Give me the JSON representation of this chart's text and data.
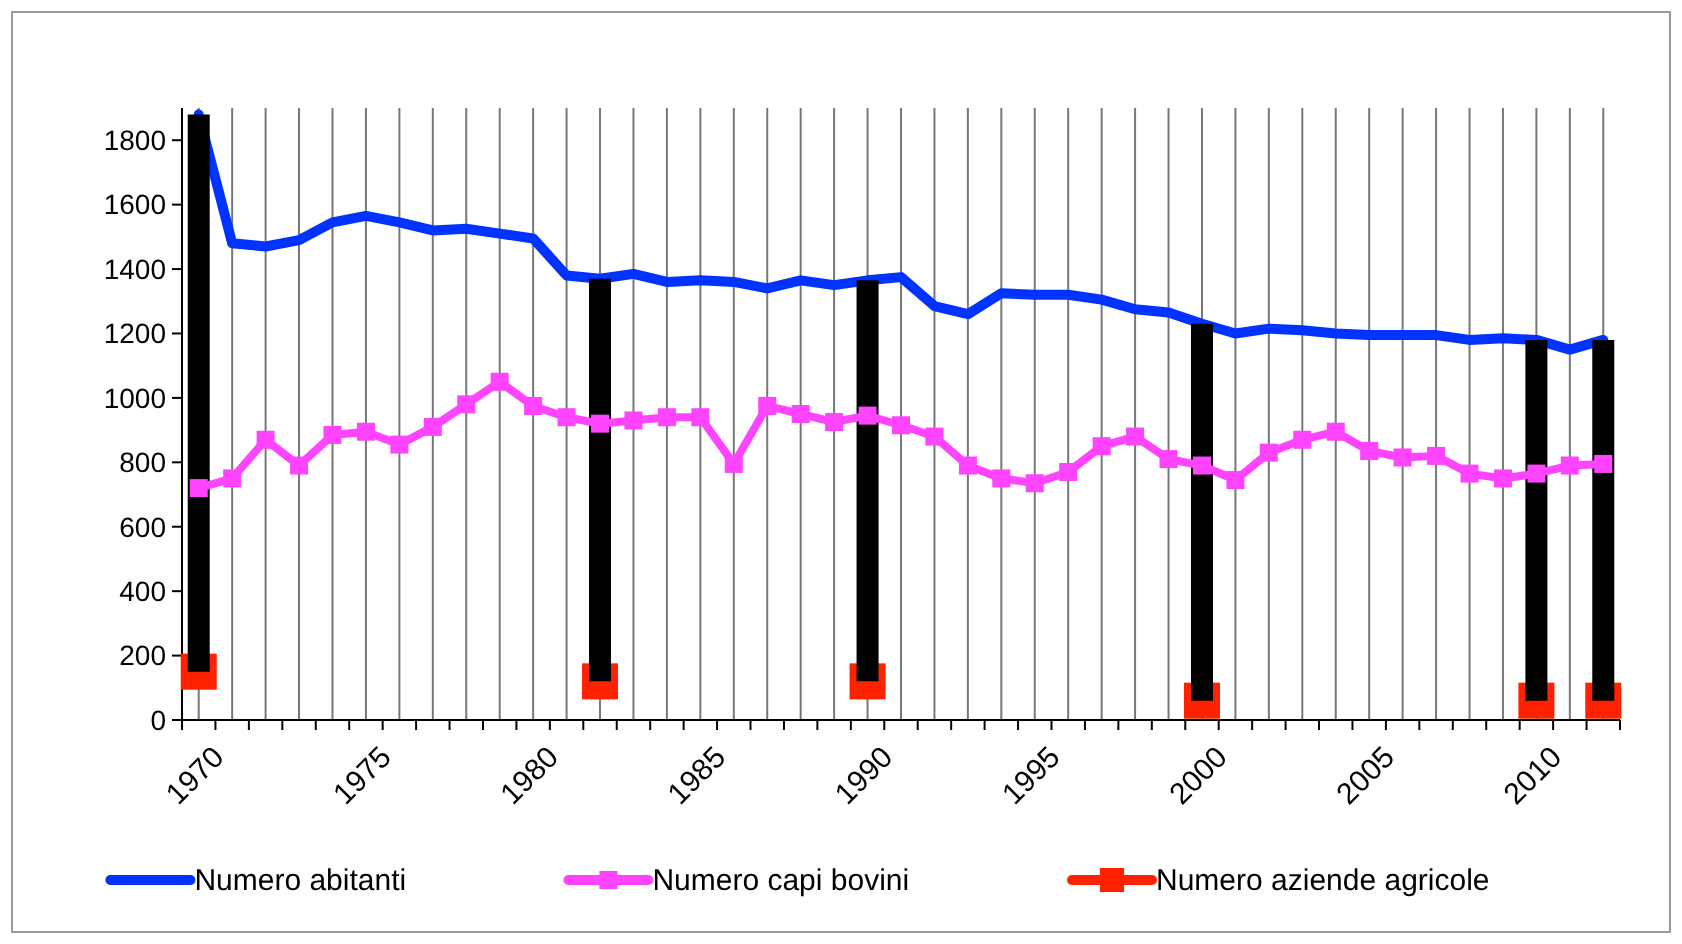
{
  "chart_data": {
    "type": "line",
    "categories": [
      "1970",
      null,
      null,
      null,
      null,
      "1975",
      null,
      null,
      null,
      null,
      "1980",
      null,
      null,
      null,
      null,
      "1985",
      null,
      null,
      null,
      null,
      "1990",
      null,
      null,
      null,
      null,
      "1995",
      null,
      null,
      null,
      null,
      "2000",
      null,
      null,
      null,
      null,
      "2005",
      null,
      null,
      null,
      null,
      "2010",
      null,
      null
    ],
    "series": [
      {
        "name": "Numero abitanti",
        "color": "#0033ff",
        "marker": "none",
        "values": [
          1880,
          1480,
          1470,
          1490,
          1545,
          1565,
          1545,
          1520,
          1525,
          1510,
          1495,
          1380,
          1370,
          1385,
          1360,
          1365,
          1360,
          1340,
          1365,
          1350,
          1365,
          1375,
          1285,
          1260,
          1325,
          1320,
          1320,
          1305,
          1275,
          1265,
          1230,
          1200,
          1215,
          1210,
          1200,
          1195,
          1195,
          1195,
          1180,
          1185,
          1180,
          1150,
          1180
        ]
      },
      {
        "name": "Numero capi bovini",
        "color": "#ff44ff",
        "marker": "square",
        "values": [
          720,
          750,
          870,
          790,
          885,
          895,
          855,
          910,
          980,
          1050,
          975,
          940,
          920,
          930,
          940,
          940,
          795,
          975,
          950,
          925,
          945,
          915,
          880,
          790,
          750,
          735,
          770,
          850,
          880,
          810,
          790,
          745,
          830,
          870,
          895,
          835,
          815,
          820,
          765,
          750,
          765,
          790,
          795
        ]
      },
      {
        "name": "Numero aziende agricole",
        "type": "scatter",
        "color": "#ff2200",
        "marker": "square",
        "values": [
          150,
          null,
          null,
          null,
          null,
          null,
          null,
          null,
          null,
          null,
          null,
          null,
          120,
          null,
          null,
          null,
          null,
          null,
          null,
          null,
          120,
          null,
          null,
          null,
          null,
          null,
          null,
          null,
          null,
          null,
          60,
          null,
          null,
          null,
          null,
          null,
          null,
          null,
          null,
          null,
          60,
          null,
          60
        ],
        "errors": [
          [
            150,
            1880
          ],
          null,
          null,
          null,
          null,
          null,
          null,
          null,
          null,
          null,
          null,
          null,
          [
            120,
            1370
          ],
          null,
          null,
          null,
          null,
          null,
          null,
          null,
          [
            120,
            1365
          ],
          null,
          null,
          null,
          null,
          null,
          null,
          null,
          null,
          null,
          [
            60,
            1230
          ],
          null,
          null,
          null,
          null,
          null,
          null,
          null,
          null,
          null,
          [
            60,
            1180
          ],
          null,
          [
            60,
            1180
          ]
        ]
      }
    ],
    "ylim": [
      0,
      1900
    ],
    "yticks": [
      0,
      200,
      400,
      600,
      800,
      1000,
      1200,
      1400,
      1600,
      1800
    ],
    "grid": "x",
    "legend": "bottom"
  }
}
